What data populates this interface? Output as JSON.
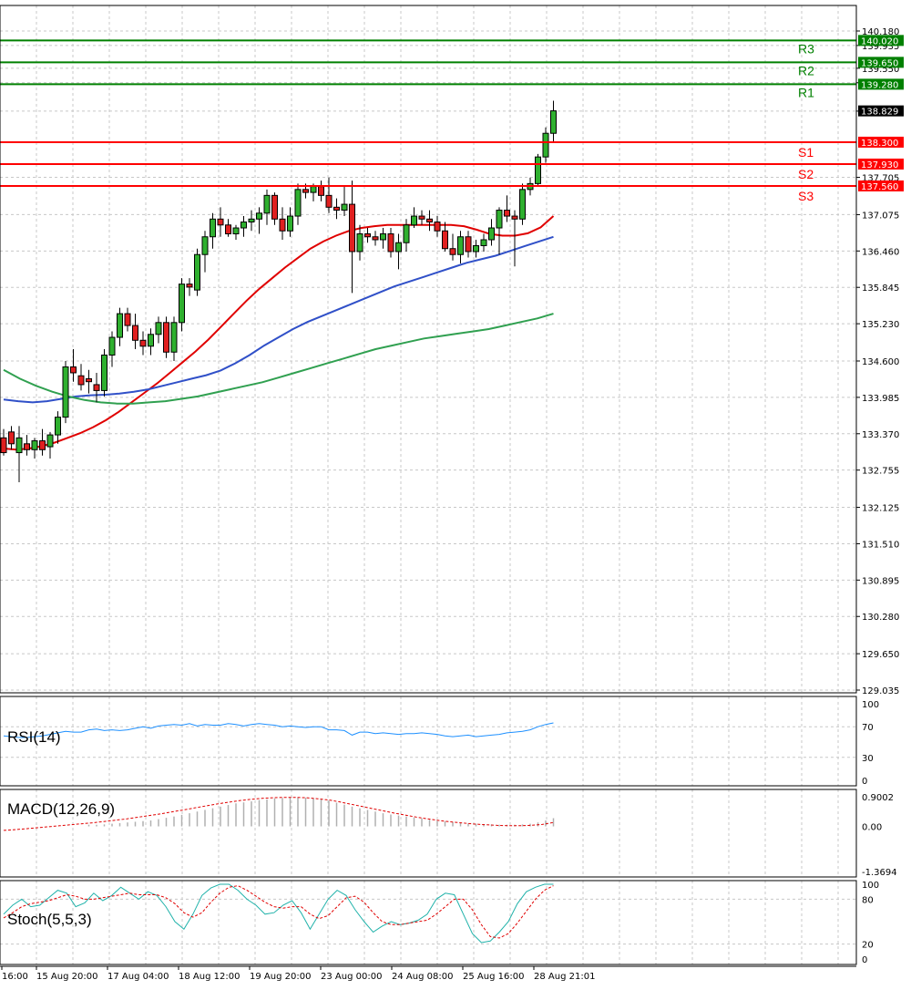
{
  "chart_data": {
    "type": "candlestick",
    "price_axis": {
      "ticks": [
        "140.180",
        "139.935",
        "139.550",
        "139.305",
        "138.825",
        "137.705",
        "137.075",
        "136.460",
        "135.845",
        "135.230",
        "134.600",
        "133.985",
        "133.370",
        "132.755",
        "132.125",
        "131.510",
        "130.895",
        "130.280",
        "129.650",
        "129.035"
      ],
      "range": [
        129.035,
        140.18
      ]
    },
    "time_axis": [
      "16:00",
      "15 Aug 20:00",
      "17 Aug 04:00",
      "18 Aug 12:00",
      "19 Aug 20:00",
      "23 Aug 00:00",
      "24 Aug 08:00",
      "25 Aug 16:00",
      "28 Aug 21:01"
    ],
    "last_price": "138.829",
    "levels": [
      {
        "name": "R3",
        "value": 140.02,
        "label": "140.020",
        "color": "#008000"
      },
      {
        "name": "R2",
        "value": 139.65,
        "label": "139.650",
        "color": "#008000"
      },
      {
        "name": "R1",
        "value": 139.28,
        "label": "139.280",
        "color": "#008000"
      },
      {
        "name": "S1",
        "value": 138.3,
        "label": "138.300",
        "color": "#ff0000"
      },
      {
        "name": "S2",
        "value": 137.93,
        "label": "137.930",
        "color": "#ff0000"
      },
      {
        "name": "S3",
        "value": 137.56,
        "label": "137.560",
        "color": "#ff0000"
      }
    ],
    "candles": [
      [
        133.3,
        133.45,
        133.0,
        133.05
      ],
      [
        133.4,
        133.5,
        133.1,
        133.2
      ],
      [
        133.05,
        133.5,
        132.55,
        133.3
      ],
      [
        133.2,
        133.35,
        133.0,
        133.1
      ],
      [
        133.1,
        133.3,
        132.95,
        133.25
      ],
      [
        133.25,
        133.45,
        133.0,
        133.1
      ],
      [
        133.15,
        133.4,
        132.95,
        133.35
      ],
      [
        133.35,
        133.75,
        133.2,
        133.65
      ],
      [
        133.65,
        134.6,
        133.55,
        134.5
      ],
      [
        134.5,
        134.8,
        134.25,
        134.4
      ],
      [
        134.35,
        134.55,
        134.1,
        134.2
      ],
      [
        134.3,
        134.45,
        134.05,
        134.25
      ],
      [
        134.2,
        134.4,
        133.9,
        134.1
      ],
      [
        134.1,
        134.8,
        134.0,
        134.7
      ],
      [
        134.7,
        135.1,
        134.5,
        135.0
      ],
      [
        135.0,
        135.5,
        134.85,
        135.4
      ],
      [
        135.4,
        135.5,
        135.1,
        135.2
      ],
      [
        135.2,
        135.4,
        134.8,
        134.95
      ],
      [
        134.95,
        135.1,
        134.7,
        134.85
      ],
      [
        134.85,
        135.15,
        134.7,
        135.05
      ],
      [
        135.05,
        135.35,
        134.9,
        135.25
      ],
      [
        135.25,
        135.35,
        134.65,
        134.75
      ],
      [
        134.75,
        135.35,
        134.6,
        135.25
      ],
      [
        135.25,
        136.0,
        135.1,
        135.9
      ],
      [
        135.9,
        136.0,
        135.7,
        135.85
      ],
      [
        135.8,
        136.5,
        135.7,
        136.4
      ],
      [
        136.4,
        136.8,
        136.1,
        136.7
      ],
      [
        136.7,
        137.1,
        136.5,
        137.0
      ],
      [
        137.0,
        137.2,
        136.7,
        136.9
      ],
      [
        136.9,
        137.0,
        136.7,
        136.75
      ],
      [
        136.75,
        136.9,
        136.65,
        136.85
      ],
      [
        136.85,
        137.05,
        136.7,
        136.95
      ],
      [
        136.95,
        137.15,
        136.8,
        137.0
      ],
      [
        137.0,
        137.2,
        136.75,
        137.1
      ],
      [
        137.1,
        137.5,
        136.9,
        137.4
      ],
      [
        137.4,
        137.45,
        136.9,
        137.0
      ],
      [
        137.0,
        137.2,
        136.65,
        136.8
      ],
      [
        136.8,
        137.2,
        136.7,
        137.05
      ],
      [
        137.05,
        137.6,
        136.9,
        137.5
      ],
      [
        137.5,
        137.6,
        137.35,
        137.45
      ],
      [
        137.45,
        137.6,
        137.3,
        137.55
      ],
      [
        137.55,
        137.65,
        137.3,
        137.4
      ],
      [
        137.4,
        137.7,
        137.1,
        137.2
      ],
      [
        137.2,
        137.35,
        137.0,
        137.15
      ],
      [
        137.15,
        137.55,
        137.05,
        137.25
      ],
      [
        137.25,
        137.65,
        135.75,
        136.45
      ],
      [
        136.45,
        136.9,
        136.3,
        136.75
      ],
      [
        136.75,
        136.85,
        136.6,
        136.7
      ],
      [
        136.7,
        136.8,
        136.55,
        136.65
      ],
      [
        136.65,
        136.85,
        136.5,
        136.75
      ],
      [
        136.75,
        136.85,
        136.35,
        136.45
      ],
      [
        136.45,
        136.75,
        136.15,
        136.6
      ],
      [
        136.6,
        137.0,
        136.45,
        136.9
      ],
      [
        136.9,
        137.2,
        136.85,
        137.05
      ],
      [
        137.05,
        137.15,
        136.9,
        137.0
      ],
      [
        137.0,
        137.15,
        136.8,
        136.95
      ],
      [
        136.95,
        137.05,
        136.7,
        136.8
      ],
      [
        136.8,
        136.95,
        136.45,
        136.5
      ],
      [
        136.5,
        136.75,
        136.3,
        136.4
      ],
      [
        136.4,
        136.8,
        136.25,
        136.7
      ],
      [
        136.7,
        136.8,
        136.35,
        136.45
      ],
      [
        136.45,
        136.65,
        136.35,
        136.55
      ],
      [
        136.55,
        136.75,
        136.45,
        136.65
      ],
      [
        136.65,
        137.0,
        136.55,
        136.85
      ],
      [
        136.85,
        137.2,
        136.4,
        137.15
      ],
      [
        137.15,
        137.4,
        136.95,
        137.05
      ],
      [
        137.05,
        137.15,
        136.2,
        137.0
      ],
      [
        137.0,
        137.6,
        136.9,
        137.5
      ],
      [
        137.5,
        137.7,
        137.4,
        137.6
      ],
      [
        137.6,
        138.1,
        137.55,
        138.05
      ],
      [
        138.05,
        138.55,
        137.95,
        138.45
      ],
      [
        138.45,
        139.0,
        138.3,
        138.83
      ]
    ],
    "moving_averages": [
      {
        "name": "",
        "color": "#e00000",
        "values": [
          133.12,
          133.1,
          133.12,
          133.16,
          133.22,
          133.3,
          133.38,
          133.48,
          133.6,
          133.74,
          133.9,
          134.06,
          134.22,
          134.4,
          134.58,
          134.76,
          134.96,
          135.18,
          135.4,
          135.62,
          135.82,
          136.0,
          136.18,
          136.34,
          136.5,
          136.62,
          136.72,
          136.8,
          136.85,
          136.88,
          136.9,
          136.9,
          136.9,
          136.9,
          136.9,
          136.9,
          136.88,
          136.82,
          136.75,
          136.72,
          136.72,
          136.76,
          136.86,
          137.05
        ]
      },
      {
        "name": "",
        "color": "#3050c8",
        "values": [
          133.95,
          133.92,
          133.9,
          133.92,
          133.96,
          134.0,
          134.02,
          134.03,
          134.05,
          134.08,
          134.12,
          134.18,
          134.24,
          134.3,
          134.36,
          134.44,
          134.56,
          134.7,
          134.86,
          135.0,
          135.14,
          135.26,
          135.36,
          135.46,
          135.56,
          135.66,
          135.76,
          135.86,
          135.94,
          136.02,
          136.1,
          136.18,
          136.26,
          136.32,
          136.38,
          136.46,
          136.54,
          136.62,
          136.7
        ]
      },
      {
        "name": "",
        "color": "#30a050",
        "values": [
          134.45,
          134.3,
          134.18,
          134.08,
          134.0,
          133.94,
          133.9,
          133.88,
          133.88,
          133.9,
          133.92,
          133.96,
          134.0,
          134.06,
          134.12,
          134.18,
          134.24,
          134.32,
          134.4,
          134.48,
          134.56,
          134.64,
          134.72,
          134.8,
          134.86,
          134.92,
          134.98,
          135.02,
          135.06,
          135.1,
          135.14,
          135.2,
          135.26,
          135.32,
          135.4
        ]
      }
    ],
    "rsi": {
      "label": "RSI(14)",
      "ticks": [
        "100",
        "70",
        "30",
        "0"
      ],
      "values": [
        58,
        57,
        56,
        56,
        57,
        58,
        60,
        62,
        64,
        63,
        63,
        66,
        67,
        65,
        66,
        65,
        66,
        68,
        70,
        68,
        71,
        72,
        73,
        72,
        74,
        71,
        73,
        72,
        72,
        74,
        73,
        71,
        73,
        74,
        73,
        72,
        70,
        71,
        70,
        69,
        70,
        70,
        66,
        66,
        65,
        59,
        63,
        63,
        61,
        62,
        61,
        60,
        61,
        61,
        62,
        61,
        60,
        58,
        57,
        58,
        59,
        57,
        58,
        59,
        60,
        62,
        63,
        64,
        66,
        70,
        73,
        75
      ]
    },
    "macd": {
      "label": "MACD(12,26,9)",
      "ticks": [
        "0.9002",
        "0.00",
        "-1.3694"
      ],
      "range": [
        -1.3694,
        0.9002
      ],
      "hist": [
        0.0,
        0.0,
        0.0,
        0.0,
        0.05,
        0.05,
        0.06,
        0.08,
        0.1,
        0.12,
        0.14,
        0.16,
        0.18,
        0.22,
        0.26,
        0.3,
        0.35,
        0.4,
        0.45,
        0.5,
        0.55,
        0.6,
        0.65,
        0.7,
        0.73,
        0.76,
        0.8,
        0.82,
        0.85,
        0.86,
        0.88,
        0.88,
        0.87,
        0.85,
        0.82,
        0.78,
        0.72,
        0.66,
        0.6,
        0.55,
        0.5,
        0.45,
        0.4,
        0.36,
        0.33,
        0.3,
        0.27,
        0.24,
        0.2,
        0.17,
        0.15,
        0.13,
        0.11,
        0.09,
        0.08,
        0.07,
        0.06,
        0.05,
        0.05,
        0.05,
        0.06,
        0.08,
        0.12,
        0.18,
        0.25
      ],
      "signal": [
        -0.12,
        -0.1,
        -0.07,
        -0.04,
        -0.01,
        0.02,
        0.05,
        0.08,
        0.11,
        0.15,
        0.19,
        0.23,
        0.28,
        0.33,
        0.38,
        0.44,
        0.5,
        0.56,
        0.62,
        0.68,
        0.73,
        0.78,
        0.82,
        0.85,
        0.87,
        0.88,
        0.88,
        0.87,
        0.84,
        0.8,
        0.74,
        0.67,
        0.6,
        0.53,
        0.46,
        0.39,
        0.33,
        0.27,
        0.22,
        0.17,
        0.13,
        0.1,
        0.07,
        0.05,
        0.03,
        0.02,
        0.02,
        0.03,
        0.06,
        0.12
      ]
    },
    "stoch": {
      "label": "Stoch(5,5,3)",
      "ticks": [
        "100",
        "80",
        "20",
        "0"
      ],
      "k": [
        60,
        72,
        80,
        70,
        72,
        82,
        92,
        88,
        70,
        75,
        88,
        78,
        85,
        96,
        88,
        80,
        90,
        85,
        70,
        50,
        40,
        60,
        85,
        95,
        100,
        100,
        92,
        80,
        72,
        60,
        62,
        72,
        78,
        62,
        40,
        60,
        80,
        92,
        85,
        66,
        50,
        36,
        44,
        50,
        46,
        48,
        52,
        60,
        80,
        88,
        86,
        60,
        34,
        22,
        24,
        36,
        50,
        74,
        90,
        96,
        100,
        100
      ],
      "d": [
        55,
        62,
        70,
        74,
        76,
        78,
        82,
        86,
        84,
        80,
        80,
        82,
        84,
        86,
        88,
        86,
        86,
        86,
        82,
        74,
        62,
        56,
        62,
        76,
        88,
        96,
        98,
        92,
        84,
        76,
        70,
        68,
        70,
        70,
        60,
        54,
        58,
        70,
        82,
        84,
        76,
        62,
        50,
        46,
        46,
        48,
        50,
        52,
        60,
        70,
        80,
        80,
        66,
        46,
        30,
        28,
        34,
        48,
        64,
        80,
        92,
        98
      ]
    }
  }
}
